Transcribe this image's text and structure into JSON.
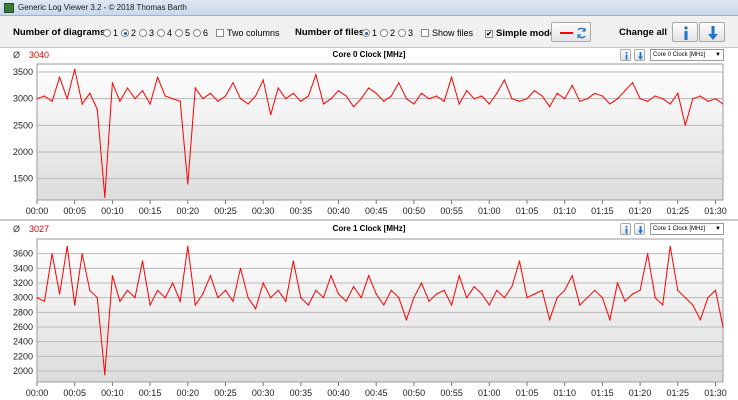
{
  "window": {
    "title": "Generic Log Viewer 3.2 - © 2018 Thomas Barth"
  },
  "toolbar": {
    "num_diagrams_label": "Number of diagrams",
    "diagram_options": [
      "1",
      "2",
      "3",
      "4",
      "5",
      "6"
    ],
    "diagram_selected": "2",
    "two_columns_label": "Two columns",
    "two_columns_checked": false,
    "num_files_label": "Number of files",
    "file_options": [
      "1",
      "2",
      "3"
    ],
    "file_selected": "1",
    "show_files_label": "Show files",
    "show_files_checked": false,
    "simple_mode_label": "Simple mode",
    "simple_mode_checked": true,
    "change_all_label": "Change all",
    "check_mark": "✔"
  },
  "chart_data": [
    {
      "type": "line",
      "title": "Core 0 Clock [MHz]",
      "average_symbol": "Ø",
      "average": "3040",
      "selector": "Core 0 Clock [MHz]",
      "color": "#ff0000",
      "ylim": [
        1100,
        3650
      ],
      "yticks": [
        1500,
        2000,
        2500,
        3000,
        3500
      ],
      "xlim": [
        "00:00",
        "01:31"
      ],
      "xticks": [
        "00:00",
        "00:05",
        "00:10",
        "00:15",
        "00:20",
        "00:25",
        "00:30",
        "00:35",
        "00:40",
        "00:45",
        "00:50",
        "00:55",
        "01:00",
        "01:05",
        "01:10",
        "01:15",
        "01:20",
        "01:25",
        "01:30"
      ],
      "series": [
        {
          "x": [
            "00:00",
            "00:01",
            "00:02",
            "00:03",
            "00:04",
            "00:05",
            "00:06",
            "00:07",
            "00:08",
            "00:09",
            "00:10",
            "00:11",
            "00:12",
            "00:13",
            "00:14",
            "00:15",
            "00:16",
            "00:17",
            "00:18",
            "00:19",
            "00:20",
            "00:21",
            "00:22",
            "00:23",
            "00:24",
            "00:25",
            "00:26",
            "00:27",
            "00:28",
            "00:29",
            "00:30",
            "00:31",
            "00:32",
            "00:33",
            "00:34",
            "00:35",
            "00:36",
            "00:37",
            "00:38",
            "00:39",
            "00:40",
            "00:41",
            "00:42",
            "00:43",
            "00:44",
            "00:45",
            "00:46",
            "00:47",
            "00:48",
            "00:49",
            "00:50",
            "00:51",
            "00:52",
            "00:53",
            "00:54",
            "00:55",
            "00:56",
            "00:57",
            "00:58",
            "00:59",
            "01:00",
            "01:01",
            "01:02",
            "01:03",
            "01:04",
            "01:05",
            "01:06",
            "01:07",
            "01:08",
            "01:09",
            "01:10",
            "01:11",
            "01:12",
            "01:13",
            "01:14",
            "01:15",
            "01:16",
            "01:17",
            "01:18",
            "01:19",
            "01:20",
            "01:21",
            "01:22",
            "01:23",
            "01:24",
            "01:25",
            "01:26",
            "01:27",
            "01:28",
            "01:29",
            "01:30",
            "01:31"
          ],
          "y": [
            3000,
            3050,
            2950,
            3400,
            3000,
            3550,
            2900,
            3100,
            2800,
            1150,
            3300,
            2950,
            3200,
            3000,
            3150,
            2900,
            3400,
            3050,
            3000,
            2950,
            1400,
            3200,
            3000,
            3100,
            2950,
            3050,
            3300,
            3000,
            2900,
            3050,
            3350,
            2700,
            3200,
            3000,
            3100,
            2950,
            3050,
            3450,
            2900,
            3000,
            3150,
            3050,
            2850,
            3000,
            3200,
            3100,
            2950,
            3050,
            3300,
            3000,
            2900,
            3100,
            3000,
            3050,
            2950,
            3400,
            2900,
            3150,
            3000,
            3050,
            2900,
            3100,
            3350,
            3000,
            2950,
            3000,
            3150,
            3050,
            2850,
            3100,
            3000,
            3250,
            2950,
            3000,
            3100,
            3050,
            2900,
            3000,
            3150,
            3300,
            3000,
            2950,
            3050,
            3000,
            2900,
            3100,
            2500,
            3000,
            3050,
            2950,
            3000,
            2900
          ]
        }
      ]
    },
    {
      "type": "line",
      "title": "Core 1 Clock [MHz]",
      "average_symbol": "Ø",
      "average": "3027",
      "selector": "Core 1 Clock [MHz]",
      "color": "#ff0000",
      "ylim": [
        1850,
        3800
      ],
      "yticks": [
        2000,
        2200,
        2400,
        2600,
        2800,
        3000,
        3200,
        3400,
        3600
      ],
      "xlim": [
        "00:00",
        "01:31"
      ],
      "xticks": [
        "00:00",
        "00:05",
        "00:10",
        "00:15",
        "00:20",
        "00:25",
        "00:30",
        "00:35",
        "00:40",
        "00:45",
        "00:50",
        "00:55",
        "01:00",
        "01:05",
        "01:10",
        "01:15",
        "01:20",
        "01:25",
        "01:30"
      ],
      "series": [
        {
          "x": [
            "00:00",
            "00:01",
            "00:02",
            "00:03",
            "00:04",
            "00:05",
            "00:06",
            "00:07",
            "00:08",
            "00:09",
            "00:10",
            "00:11",
            "00:12",
            "00:13",
            "00:14",
            "00:15",
            "00:16",
            "00:17",
            "00:18",
            "00:19",
            "00:20",
            "00:21",
            "00:22",
            "00:23",
            "00:24",
            "00:25",
            "00:26",
            "00:27",
            "00:28",
            "00:29",
            "00:30",
            "00:31",
            "00:32",
            "00:33",
            "00:34",
            "00:35",
            "00:36",
            "00:37",
            "00:38",
            "00:39",
            "00:40",
            "00:41",
            "00:42",
            "00:43",
            "00:44",
            "00:45",
            "00:46",
            "00:47",
            "00:48",
            "00:49",
            "00:50",
            "00:51",
            "00:52",
            "00:53",
            "00:54",
            "00:55",
            "00:56",
            "00:57",
            "00:58",
            "00:59",
            "01:00",
            "01:01",
            "01:02",
            "01:03",
            "01:04",
            "01:05",
            "01:06",
            "01:07",
            "01:08",
            "01:09",
            "01:10",
            "01:11",
            "01:12",
            "01:13",
            "01:14",
            "01:15",
            "01:16",
            "01:17",
            "01:18",
            "01:19",
            "01:20",
            "01:21",
            "01:22",
            "01:23",
            "01:24",
            "01:25",
            "01:26",
            "01:27",
            "01:28",
            "01:29",
            "01:30",
            "01:31"
          ],
          "y": [
            3000,
            2950,
            3600,
            3050,
            3700,
            2900,
            3600,
            3100,
            3000,
            1950,
            3300,
            2950,
            3100,
            3000,
            3500,
            2900,
            3100,
            3000,
            3200,
            2950,
            3700,
            2900,
            3050,
            3300,
            3000,
            3100,
            2950,
            3400,
            3000,
            2850,
            3200,
            3000,
            3100,
            2950,
            3500,
            3000,
            2900,
            3100,
            3000,
            3300,
            3050,
            2950,
            3150,
            3000,
            3300,
            3050,
            2900,
            3100,
            3000,
            2700,
            3000,
            3200,
            2950,
            3050,
            3100,
            2900,
            3300,
            3000,
            3150,
            3050,
            2900,
            3100,
            3000,
            3150,
            3500,
            3000,
            3050,
            3100,
            2700,
            3000,
            3100,
            3300,
            2900,
            3000,
            3100,
            3000,
            2700,
            3200,
            2950,
            3050,
            3100,
            3600,
            3000,
            2900,
            3700,
            3100,
            3000,
            2900,
            2700,
            3000,
            3100,
            2600
          ]
        }
      ]
    }
  ]
}
